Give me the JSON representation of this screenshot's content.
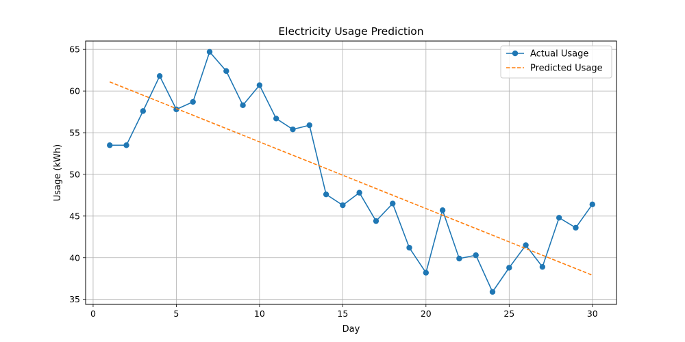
{
  "chart_data": {
    "type": "line",
    "title": "Electricity Usage Prediction",
    "xlabel": "Day",
    "ylabel": "Usage (kWh)",
    "xlim": [
      -0.45,
      31.45
    ],
    "ylim": [
      34.4,
      66.0
    ],
    "xticks": [
      0,
      5,
      10,
      15,
      20,
      25,
      30
    ],
    "yticks": [
      35,
      40,
      45,
      50,
      55,
      60,
      65
    ],
    "grid": true,
    "legend_position": "top-right",
    "x": [
      1,
      2,
      3,
      4,
      5,
      6,
      7,
      8,
      9,
      10,
      11,
      12,
      13,
      14,
      15,
      16,
      17,
      18,
      19,
      20,
      21,
      22,
      23,
      24,
      25,
      26,
      27,
      28,
      29,
      30
    ],
    "series": [
      {
        "name": "Actual Usage",
        "style": "solid-with-markers",
        "color": "#1f77b4",
        "values": [
          53.5,
          53.5,
          57.6,
          61.8,
          57.8,
          58.7,
          64.7,
          62.4,
          58.3,
          60.7,
          56.7,
          55.4,
          55.9,
          47.6,
          46.3,
          47.8,
          44.4,
          46.5,
          41.2,
          38.2,
          45.7,
          39.9,
          40.3,
          35.9,
          38.8,
          41.5,
          38.9,
          44.8,
          43.6,
          46.4
        ]
      },
      {
        "name": "Predicted Usage",
        "style": "dashed",
        "color": "#ff7f0e",
        "values": [
          61.1,
          60.3,
          59.5,
          58.7,
          57.9,
          57.1,
          56.3,
          55.5,
          54.7,
          53.9,
          53.1,
          52.3,
          51.5,
          50.7,
          49.9,
          49.1,
          48.3,
          47.5,
          46.7,
          45.9,
          45.1,
          44.3,
          43.5,
          42.7,
          41.9,
          41.1,
          40.3,
          39.5,
          38.7,
          37.9
        ]
      }
    ]
  }
}
